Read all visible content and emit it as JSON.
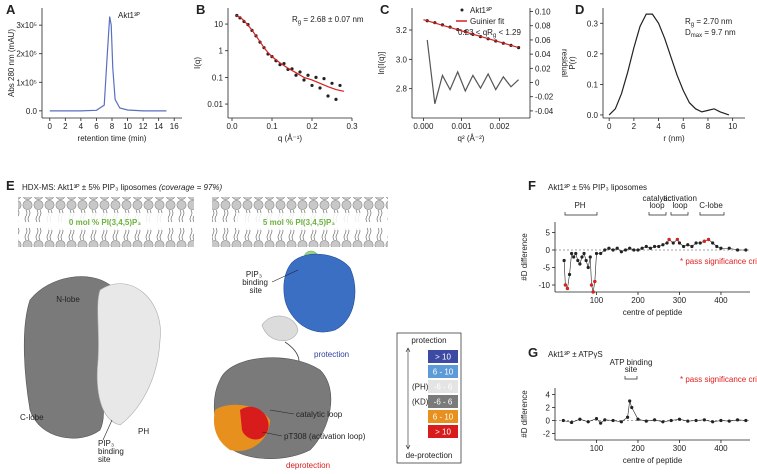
{
  "chart_data": [
    {
      "panel": "A",
      "type": "line",
      "xlabel": "retention time (min)",
      "ylabel": "Abs 280 nm (mAU)",
      "xlim": [
        -1,
        17
      ],
      "xticks": [
        0,
        2,
        4,
        6,
        8,
        10,
        12,
        14,
        16
      ],
      "ylim": [
        -25000,
        360000
      ],
      "yticks": [
        {
          "value": 0,
          "label": "0.0"
        },
        {
          "value": 100000,
          "label": "1x10⁵"
        },
        {
          "value": 200000,
          "label": "2x10⁵"
        },
        {
          "value": 300000,
          "label": "3x10⁵"
        }
      ],
      "series": [
        {
          "name": "Akt1³ᴾ",
          "color": "#5a6fc0",
          "mode": "line",
          "x": [
            0,
            2,
            4,
            6,
            7,
            7.4,
            7.7,
            7.9,
            8.1,
            8.4,
            9,
            10,
            12,
            14,
            15
          ],
          "values": [
            0,
            0,
            0,
            2000,
            20000,
            200000,
            330000,
            300000,
            150000,
            40000,
            10000,
            3000,
            0,
            0,
            0
          ]
        }
      ]
    },
    {
      "panel": "B",
      "type": "scatter",
      "ylog": true,
      "xlabel": "q (Å⁻¹)",
      "ylabel": "I(q)",
      "annotation": {
        "symbol": "R",
        "sub": "g",
        "text": " = 2.68 ± 0.07 nm"
      },
      "xlim": [
        -0.01,
        0.3
      ],
      "xticks": [
        {
          "value": 0,
          "label": "0.0"
        },
        0.1,
        0.2,
        0.3
      ],
      "ylim": [
        0.003,
        40
      ],
      "yticks": [
        0.01,
        0.1,
        1,
        10
      ],
      "series": [
        {
          "color": "#222222",
          "mode": "points",
          "x": [
            0.012,
            0.02,
            0.03,
            0.04,
            0.05,
            0.06,
            0.07,
            0.08,
            0.09,
            0.1,
            0.11,
            0.12,
            0.13,
            0.14,
            0.15,
            0.16,
            0.17,
            0.18,
            0.19,
            0.2,
            0.21,
            0.22,
            0.23,
            0.24,
            0.25,
            0.26,
            0.27
          ],
          "values": [
            21,
            17,
            12.5,
            9.5,
            5.8,
            3.6,
            2.1,
            1.3,
            0.75,
            0.6,
            0.42,
            0.3,
            0.33,
            0.2,
            0.21,
            0.12,
            0.16,
            0.08,
            0.12,
            0.05,
            0.1,
            0.04,
            0.09,
            0.02,
            0.06,
            0.015,
            0.05
          ]
        },
        {
          "color": "#d62020",
          "mode": "line",
          "x": [
            0.01,
            0.02,
            0.03,
            0.04,
            0.05,
            0.06,
            0.07,
            0.08,
            0.09,
            0.1,
            0.12,
            0.14,
            0.16,
            0.18,
            0.2,
            0.22,
            0.24,
            0.26,
            0.28
          ],
          "values": [
            21,
            18,
            13.5,
            9,
            5.9,
            3.6,
            2.2,
            1.3,
            0.85,
            0.6,
            0.35,
            0.22,
            0.15,
            0.1,
            0.08,
            0.06,
            0.045,
            0.035,
            0.03
          ]
        }
      ]
    },
    {
      "panel": "C",
      "type": "scatter",
      "xlabel": "q² (Å⁻²)",
      "ylabel": "ln[I(q)]",
      "y2label": "residual",
      "annotation": {
        "text": "0.23 < qR",
        "sub": "g",
        "tail": " < 1.29"
      },
      "xlim": [
        -0.0003,
        0.0028
      ],
      "xticks": [
        {
          "value": 0,
          "label": "0.000"
        },
        {
          "value": 0.001,
          "label": "0.001"
        },
        {
          "value": 0.002,
          "label": "0.002"
        }
      ],
      "ylim": [
        2.6,
        3.35
      ],
      "yticks": [
        2.8,
        {
          "value": 3,
          "label": "3.0"
        },
        3.2
      ],
      "y2lim": [
        -0.05,
        0.105
      ],
      "y2ticks": [
        -0.04,
        -0.02,
        0,
        0.02,
        0.04,
        0.06,
        0.08,
        {
          "value": 0.1,
          "label": "0.10"
        }
      ],
      "series": [
        {
          "name": "Akt1³ᴾ",
          "color": "#222222",
          "mode": "points",
          "x": [
            0.0001,
            0.0003,
            0.0005,
            0.0007,
            0.0009,
            0.0011,
            0.0013,
            0.0015,
            0.0017,
            0.0019,
            0.0021,
            0.0023,
            0.0025
          ],
          "values": [
            3.263,
            3.25,
            3.235,
            3.22,
            3.203,
            3.19,
            3.17,
            3.155,
            3.14,
            3.125,
            3.11,
            3.095,
            3.08
          ]
        },
        {
          "name": "Guinier fit",
          "color": "#d62020",
          "mode": "line",
          "x": [
            0,
            0.0025
          ],
          "values": [
            3.27,
            3.08
          ]
        },
        {
          "color": "#555555",
          "mode": "line",
          "axis": "y2",
          "x": [
            0.0001,
            0.0003,
            0.0005,
            0.0007,
            0.0009,
            0.0011,
            0.0013,
            0.0015,
            0.0017,
            0.0019,
            0.0021,
            0.0023,
            0.0025
          ],
          "values": [
            0.06,
            -0.03,
            0.01,
            -0.01,
            0.015,
            -0.012,
            0.01,
            -0.008,
            0.012,
            -0.01,
            0.008,
            -0.006,
            0.004
          ]
        }
      ]
    },
    {
      "panel": "D",
      "type": "line",
      "xlabel": "r (nm)",
      "ylabel": "P(r)",
      "annotation": {
        "rg": {
          "symbol": "R",
          "sub": "g",
          "text": " = 2.70 nm"
        },
        "dmax": {
          "symbol": "D",
          "sub": "max",
          "text": " = 9.7 nm"
        }
      },
      "xlim": [
        -0.5,
        11
      ],
      "xticks": [
        0,
        2,
        4,
        6,
        8,
        10
      ],
      "ylim": [
        -0.01,
        0.35
      ],
      "yticks": [
        {
          "value": 0,
          "label": "0.0"
        },
        0.1,
        0.2,
        0.3
      ],
      "series": [
        {
          "color": "#222222",
          "mode": "line",
          "x": [
            0,
            0.5,
            1,
            1.5,
            2,
            2.5,
            3,
            3.5,
            4,
            4.5,
            5,
            5.5,
            6,
            6.5,
            7,
            7.5,
            8,
            8.5,
            9,
            9.7
          ],
          "values": [
            0,
            0.02,
            0.07,
            0.14,
            0.22,
            0.29,
            0.33,
            0.33,
            0.3,
            0.25,
            0.19,
            0.13,
            0.08,
            0.04,
            0.02,
            0.01,
            0.015,
            0.02,
            0.01,
            0
          ]
        }
      ]
    },
    {
      "panel": "F",
      "type": "scatter",
      "title": "Akt1³ᴾ ± 5% PIP₃ liposomes",
      "xlabel": "centre of peptide",
      "ylabel": "#D difference",
      "zero_line": true,
      "regions": {
        "ph": "PH",
        "catalytic": [
          "catalytic",
          "loop"
        ],
        "activation": [
          "activation",
          "loop"
        ],
        "clobe": "C-lobe"
      },
      "legend": "* pass significance criteria",
      "xlim": [
        0,
        470
      ],
      "xticks": [
        100,
        200,
        300,
        400
      ],
      "ylim": [
        -12,
        8
      ],
      "yticks": [
        -10,
        -5,
        0,
        5
      ],
      "series": [
        {
          "color": "#222222",
          "mode": "linepoints",
          "x": [
            22,
            25,
            30,
            35,
            40,
            45,
            50,
            55,
            60,
            65,
            70,
            75,
            80,
            85,
            88,
            92,
            96,
            100,
            110,
            120,
            130,
            140,
            150,
            160,
            170,
            180,
            190,
            200,
            210,
            220,
            230,
            240,
            250,
            260,
            270,
            275,
            285,
            295,
            300,
            310,
            320,
            330,
            340,
            350,
            360,
            370,
            380,
            390,
            400,
            420,
            440,
            460
          ],
          "values": [
            -3,
            -10,
            -11,
            -7,
            -1,
            -2,
            -1,
            -3,
            -4,
            -2,
            -1,
            -3,
            -5,
            -2,
            -10,
            -12,
            -9,
            -1,
            -1,
            0,
            0.5,
            0,
            0.5,
            -0.5,
            0,
            0.5,
            0,
            0,
            0.5,
            1,
            0.5,
            1,
            1,
            1.5,
            2,
            3,
            2,
            3,
            2,
            1,
            1.5,
            1,
            2,
            2,
            2.5,
            3,
            2,
            1,
            0.5,
            0.5,
            0,
            0
          ]
        },
        {
          "color": "#e02020",
          "mode": "points",
          "x": [
            25,
            30,
            88,
            92,
            96,
            275,
            295,
            360,
            370
          ],
          "values": [
            -10,
            -11,
            -10,
            -12,
            -9,
            3,
            3,
            2.5,
            3
          ]
        }
      ]
    },
    {
      "panel": "G",
      "type": "scatter",
      "title": "Akt1³ᴾ ± ATPγS",
      "xlabel": "centre of peptide",
      "ylabel": "#D difference",
      "zero_line": true,
      "regions": {
        "atp": [
          "ATP binding",
          "site"
        ]
      },
      "legend": "* pass significance criteria",
      "xlim": [
        0,
        470
      ],
      "xticks": [
        100,
        200,
        300,
        400
      ],
      "ylim": [
        -3,
        5
      ],
      "yticks": [
        -2,
        0,
        2,
        4
      ],
      "series": [
        {
          "color": "#222222",
          "mode": "linepoints",
          "x": [
            20,
            40,
            60,
            80,
            100,
            110,
            120,
            140,
            160,
            175,
            180,
            185,
            200,
            220,
            240,
            260,
            280,
            300,
            320,
            340,
            360,
            380,
            400,
            420,
            440,
            460
          ],
          "values": [
            0,
            -0.3,
            0.2,
            -0.2,
            0.3,
            -0.4,
            0.1,
            0,
            -0.2,
            0.5,
            3,
            2,
            0.2,
            -0.1,
            0.1,
            -0.2,
            0,
            0.2,
            -0.1,
            0,
            0.1,
            -0.2,
            0,
            -0.1,
            0.1,
            0
          ]
        }
      ]
    }
  ],
  "panel_e": {
    "panel": "E",
    "title": "HDX-MS: Akt1³ᴾ ± 5% PIP₃ liposomes ",
    "note": "(coverage = 97%)",
    "membrane_left": "0 mol % PI(3,4,5)P₃",
    "membrane_right": "5 mol % PI(3,4,5)P₃",
    "left": {
      "n_lobe": "N-lobe",
      "c_lobe": "C-lobe",
      "ph": "PH",
      "site": [
        "PIP₃",
        "binding",
        "site"
      ]
    },
    "right": {
      "site": [
        "PIP₃",
        "binding",
        "site"
      ],
      "protection": "protection",
      "catalytic_loop": "catalytic loop",
      "pt308": "pT308 (activation loop)",
      "deprotection": "deprotection"
    },
    "legend": {
      "top": "protection",
      "bottom": "de-protection",
      "rows": [
        {
          "label": "> 10",
          "color": "#3c4aa3"
        },
        {
          "label": "6 - 10",
          "color": "#5d9ad8"
        },
        {
          "group": "(PH)",
          "label": "-6 - 6",
          "color": "#e4e4e4"
        },
        {
          "group": "(KD)",
          "label": "-6 - 6",
          "color": "#7a7a7a"
        },
        {
          "label": "6 - 10",
          "color": "#e8901e"
        },
        {
          "label": "> 10",
          "color": "#d81c1c"
        }
      ]
    }
  }
}
